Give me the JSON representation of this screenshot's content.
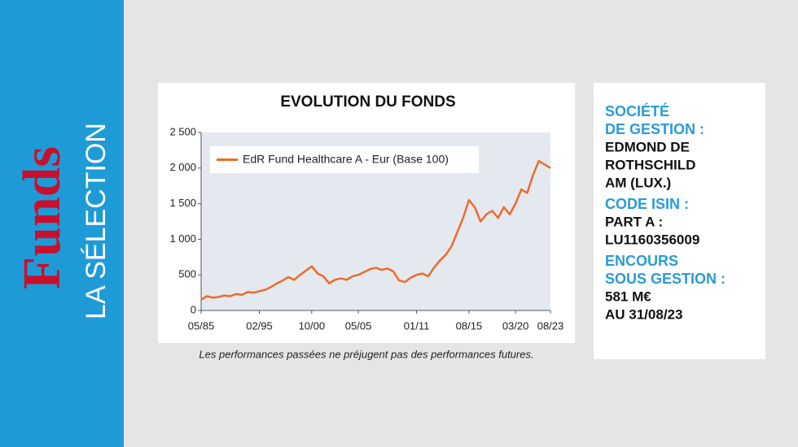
{
  "sidebar": {
    "brand": "Funds",
    "subtitle": "LA SÉLECTION"
  },
  "chart_data": {
    "type": "line",
    "title": "EVOLUTION DU FONDS",
    "categories": [
      "05/85",
      null,
      null,
      null,
      null,
      null,
      null,
      null,
      null,
      null,
      "02/95",
      null,
      null,
      null,
      null,
      null,
      null,
      null,
      null,
      "10/00",
      null,
      null,
      null,
      null,
      null,
      null,
      null,
      "05/05",
      null,
      null,
      null,
      null,
      null,
      null,
      null,
      null,
      null,
      "01/11",
      null,
      null,
      null,
      null,
      null,
      null,
      null,
      null,
      "08/15",
      null,
      null,
      null,
      null,
      null,
      null,
      null,
      "03/20",
      null,
      null,
      null,
      null,
      null,
      "08/23"
    ],
    "series": [
      {
        "name": "EdR Fund Healthcare A - Eur (Base 100)",
        "color": "#ee6a2c",
        "values": [
          150,
          200,
          180,
          190,
          210,
          200,
          230,
          220,
          260,
          250,
          270,
          290,
          330,
          380,
          420,
          470,
          430,
          500,
          560,
          620,
          520,
          480,
          380,
          430,
          450,
          430,
          480,
          500,
          540,
          580,
          600,
          570,
          590,
          550,
          420,
          400,
          460,
          500,
          520,
          480,
          600,
          700,
          780,
          900,
          1100,
          1300,
          1550,
          1450,
          1250,
          1350,
          1400,
          1300,
          1450,
          1350,
          1500,
          1700,
          1650,
          1900,
          2100,
          2050,
          2000
        ]
      }
    ],
    "ylim": [
      0,
      2500
    ],
    "yticks": [
      0,
      500,
      {
        "value": 1000,
        "label": "1 000"
      },
      {
        "value": 1500,
        "label": "1 500"
      },
      {
        "value": 2000,
        "label": "2 000"
      },
      {
        "value": 2500,
        "label": "2 500"
      }
    ],
    "legend": "upper left",
    "grid": false,
    "plot_background": "#e4e9ef",
    "note": "Les performances passées ne préjugent pas des performances futures."
  },
  "info": {
    "blocks": [
      {
        "label": [
          "SOCIÉTÉ",
          "DE GESTION :"
        ],
        "value": [
          "EDMOND DE",
          "ROTHSCHILD",
          "AM (LUX.)"
        ]
      },
      {
        "label": [
          "CODE ISIN :"
        ],
        "value": [
          "PART A :",
          "LU1160356009"
        ]
      },
      {
        "label": [
          "ENCOURS",
          "SOUS GESTION :"
        ],
        "value": [
          "581  M€",
          "AU 31/08/23"
        ]
      }
    ]
  }
}
